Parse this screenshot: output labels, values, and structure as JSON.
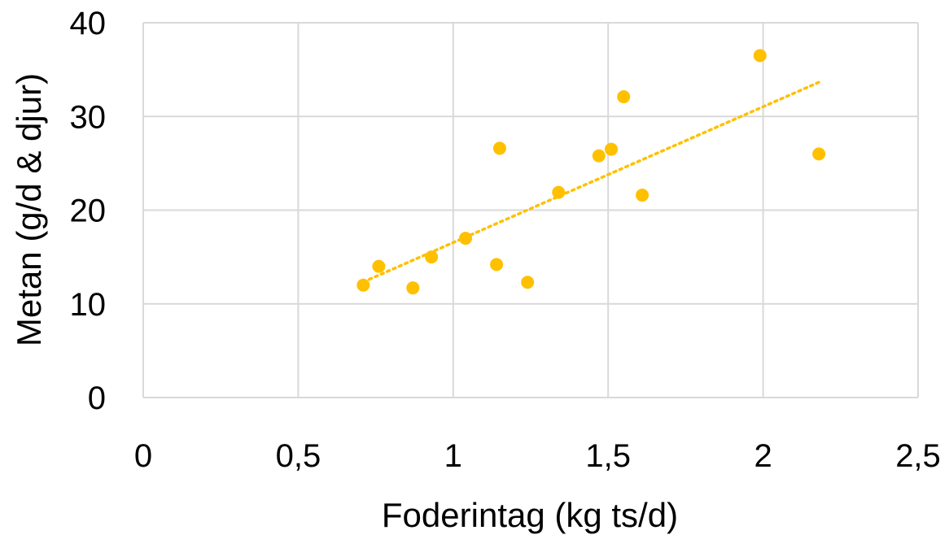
{
  "chart_data": {
    "type": "scatter",
    "title": "",
    "xlabel": "Foderintag (kg ts/d)",
    "ylabel": "Metan (g/d & djur)",
    "xlim": [
      0,
      2.5
    ],
    "ylim": [
      0,
      40
    ],
    "x_ticks": [
      0,
      0.5,
      1,
      1.5,
      2,
      2.5
    ],
    "x_tick_labels": [
      "0",
      "0,5",
      "1",
      "1,5",
      "2",
      "2,5"
    ],
    "y_ticks": [
      0,
      10,
      20,
      30,
      40
    ],
    "y_tick_labels": [
      "0",
      "10",
      "20",
      "30",
      "40"
    ],
    "grid": true,
    "legend": "none",
    "colors": {
      "points": "#FFC000",
      "trendline": "#FFC000",
      "grid": "#D9D9D9"
    },
    "series": [
      {
        "x": [
          0.71,
          0.76,
          0.87,
          0.93,
          1.04,
          1.14,
          1.15,
          1.24,
          1.34,
          1.47,
          1.51,
          1.55,
          1.61,
          1.99,
          2.18
        ],
        "y": [
          12.0,
          14.0,
          11.7,
          15.0,
          17.0,
          14.2,
          26.6,
          12.3,
          21.9,
          25.8,
          26.5,
          32.1,
          21.6,
          36.5,
          26.0
        ]
      }
    ],
    "trendline": {
      "type": "linear",
      "style": "dotted",
      "x_range": [
        0.71,
        2.18
      ]
    }
  }
}
